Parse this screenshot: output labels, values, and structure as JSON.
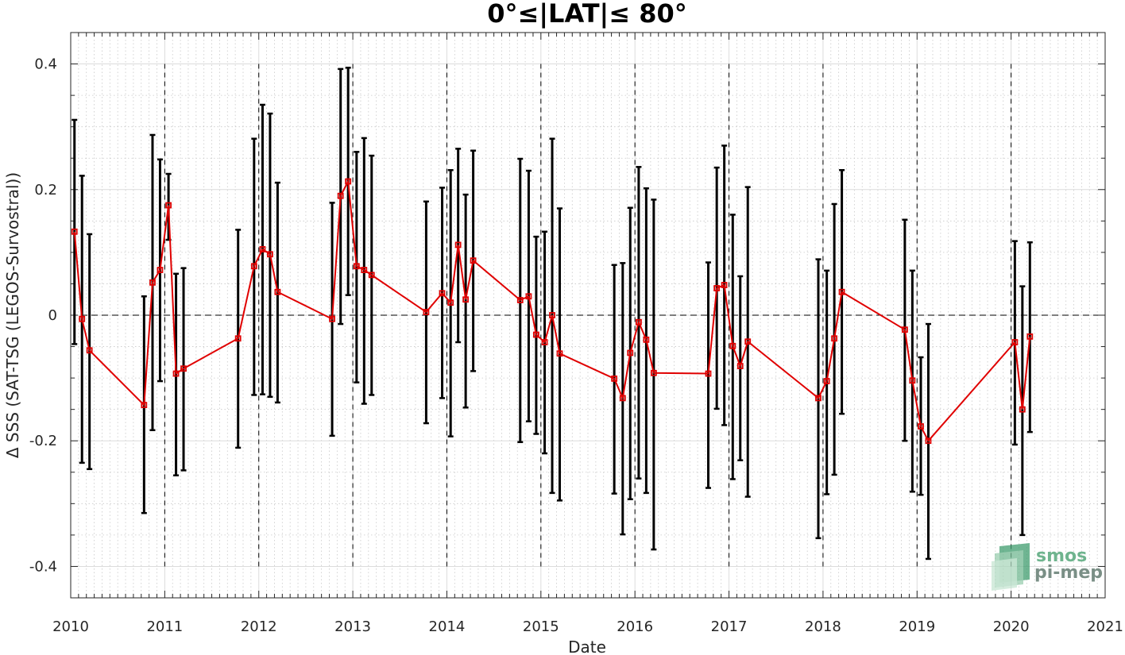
{
  "chart_data": {
    "type": "line",
    "title": "0°≤|LAT|≤ 80°",
    "xlabel": "Date",
    "ylabel": "Δ SSS (SAT-TSG (LEGOS-Survostral))",
    "xlim": [
      2010,
      2021
    ],
    "ylim": [
      -0.45,
      0.45
    ],
    "x_ticks": [
      2010,
      2011,
      2012,
      2013,
      2014,
      2015,
      2016,
      2017,
      2018,
      2019,
      2020,
      2021
    ],
    "x_tick_labels": [
      "2010",
      "2011",
      "2012",
      "2013",
      "2014",
      "2015",
      "2016",
      "2017",
      "2018",
      "2019",
      "2020",
      "2021"
    ],
    "y_ticks": [
      -0.4,
      -0.2,
      0,
      0.2,
      0.4
    ],
    "y_tick_labels": [
      "-0.4",
      "-0.2",
      "0",
      "0.2",
      "0.4"
    ],
    "grid": true,
    "year_separators": [
      2011,
      2012,
      2013,
      2014,
      2015,
      2016,
      2017,
      2018,
      2019,
      2020
    ],
    "zero_line": true,
    "line_color": "#e00000",
    "errorbar_color": "#000000",
    "series": [
      {
        "x": [
          2010.04,
          2010.12,
          2010.2,
          2010.78,
          2010.87,
          2010.95,
          2011.04,
          2011.12,
          2011.2,
          2011.78,
          2011.95,
          2012.04,
          2012.12,
          2012.2,
          2012.78,
          2012.87,
          2012.95,
          2013.04,
          2013.12,
          2013.2,
          2013.78,
          2013.95,
          2014.04,
          2014.12,
          2014.2,
          2014.28,
          2014.78,
          2014.87,
          2014.95,
          2015.04,
          2015.12,
          2015.2,
          2015.78,
          2015.87,
          2015.95,
          2016.04,
          2016.12,
          2016.2,
          2016.78,
          2016.87,
          2016.95,
          2017.04,
          2017.12,
          2017.2,
          2017.95,
          2018.04,
          2018.12,
          2018.2,
          2018.87,
          2018.95,
          2019.04,
          2019.12,
          2020.04,
          2020.12,
          2020.2
        ],
        "y": [
          0.133,
          -0.006,
          -0.056,
          -0.143,
          0.052,
          0.072,
          0.175,
          -0.093,
          -0.085,
          -0.037,
          0.078,
          0.105,
          0.097,
          0.037,
          -0.006,
          0.19,
          0.213,
          0.078,
          0.072,
          0.064,
          0.005,
          0.035,
          0.02,
          0.112,
          0.025,
          0.087,
          0.024,
          0.03,
          -0.031,
          -0.043,
          0.0,
          -0.061,
          -0.101,
          -0.132,
          -0.06,
          -0.011,
          -0.039,
          -0.092,
          -0.093,
          0.043,
          0.048,
          -0.049,
          -0.081,
          -0.042,
          -0.132,
          -0.105,
          -0.037,
          0.037,
          -0.023,
          -0.104,
          -0.177,
          -0.2,
          -0.043,
          -0.15,
          -0.034
        ],
        "err_low": [
          -0.046,
          -0.235,
          -0.245,
          -0.315,
          -0.183,
          -0.105,
          0.12,
          -0.255,
          -0.247,
          -0.211,
          -0.127,
          -0.126,
          -0.13,
          -0.139,
          -0.192,
          -0.014,
          0.032,
          -0.107,
          -0.141,
          -0.127,
          -0.172,
          -0.132,
          -0.193,
          -0.043,
          -0.147,
          -0.089,
          -0.202,
          -0.169,
          -0.189,
          -0.22,
          -0.283,
          -0.295,
          -0.284,
          -0.349,
          -0.293,
          -0.26,
          -0.283,
          -0.373,
          -0.275,
          -0.149,
          -0.175,
          -0.261,
          -0.231,
          -0.289,
          -0.355,
          -0.285,
          -0.254,
          -0.157,
          -0.2,
          -0.281,
          -0.286,
          -0.388,
          -0.206,
          -0.35,
          -0.186
        ],
        "err_high": [
          0.311,
          0.222,
          0.129,
          0.03,
          0.287,
          0.248,
          0.225,
          0.066,
          0.075,
          0.136,
          0.281,
          0.335,
          0.321,
          0.211,
          0.179,
          0.392,
          0.394,
          0.26,
          0.282,
          0.254,
          0.181,
          0.203,
          0.231,
          0.265,
          0.192,
          0.262,
          0.249,
          0.23,
          0.125,
          0.133,
          0.281,
          0.17,
          0.08,
          0.083,
          0.171,
          0.236,
          0.202,
          0.184,
          0.084,
          0.235,
          0.27,
          0.16,
          0.062,
          0.204,
          0.089,
          0.071,
          0.177,
          0.231,
          0.152,
          0.071,
          -0.067,
          -0.014,
          0.118,
          0.046,
          0.116
        ]
      }
    ]
  },
  "logo": {
    "line1": "smos",
    "line2": "pi-mep",
    "color": "#5aa67e"
  }
}
